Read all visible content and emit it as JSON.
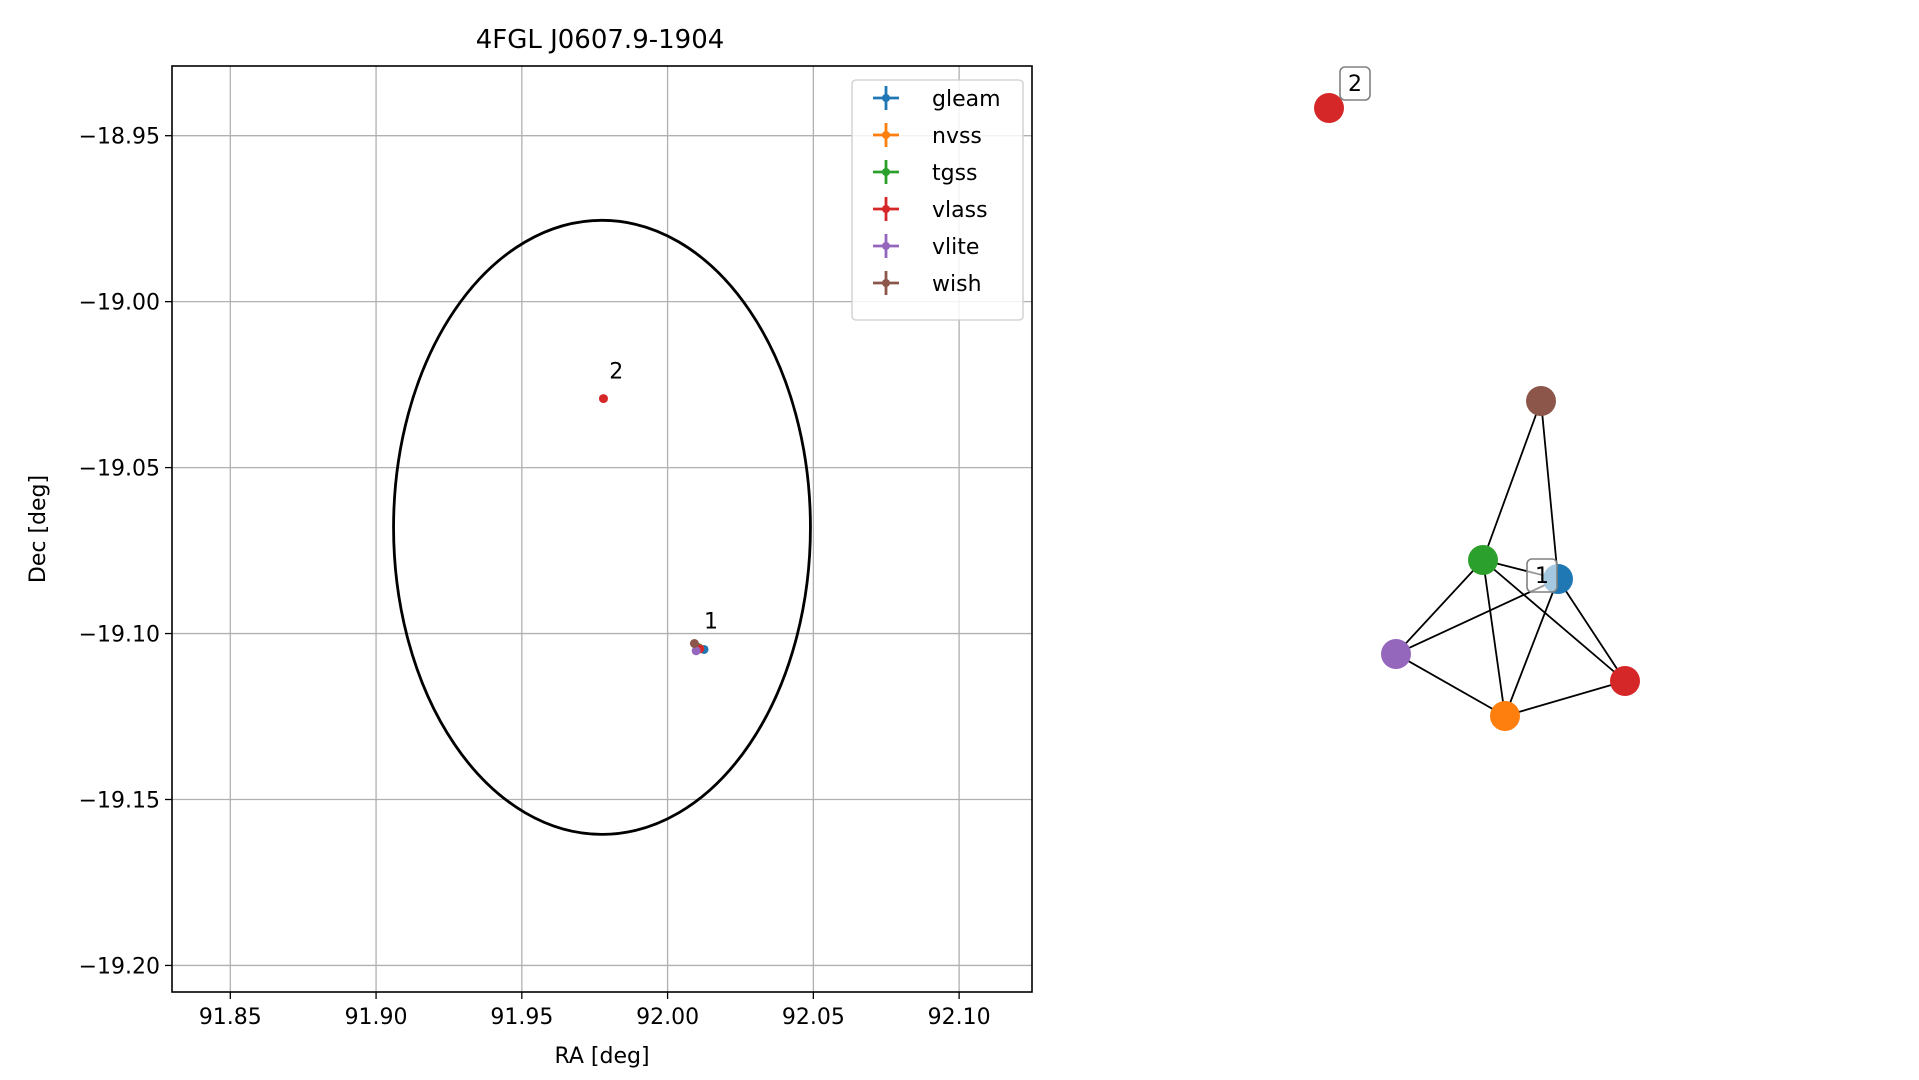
{
  "chart_data": [
    {
      "type": "scatter",
      "title": "4FGL J0607.9-1904",
      "xlabel": "RA [deg]",
      "ylabel": "Dec [deg]",
      "xlim": [
        91.83,
        92.125
      ],
      "ylim": [
        -19.208,
        -18.929
      ],
      "xticks": [
        {
          "value": 91.85,
          "label": "91.85"
        },
        {
          "value": 91.9,
          "label": "91.90"
        },
        {
          "value": 91.95,
          "label": "91.95"
        },
        {
          "value": 92.0,
          "label": "92.00"
        },
        {
          "value": 92.05,
          "label": "92.05"
        },
        {
          "value": 92.1,
          "label": "92.10"
        }
      ],
      "yticks": [
        {
          "value": -18.95,
          "label": "−18.95"
        },
        {
          "value": -19.0,
          "label": "−19.00"
        },
        {
          "value": -19.05,
          "label": "−19.05"
        },
        {
          "value": -19.1,
          "label": "−19.10"
        },
        {
          "value": -19.15,
          "label": "−19.15"
        },
        {
          "value": -19.2,
          "label": "−19.20"
        }
      ],
      "grid": true,
      "legend_position": "top-right",
      "ellipse": {
        "center": [
          91.9775,
          -19.068
        ],
        "semi_axis_ra": 0.0715,
        "semi_axis_dec": 0.0925,
        "color": "#000000"
      },
      "series": [
        {
          "name": "gleam",
          "color": "#1f77b4",
          "points": [
            [
              92.0125,
              -19.1048
            ]
          ]
        },
        {
          "name": "nvss",
          "color": "#ff7f0e",
          "points": [
            [
              92.011,
              -19.1045
            ]
          ]
        },
        {
          "name": "tgss",
          "color": "#2ca02c",
          "points": [
            [
              92.0105,
              -19.1042
            ]
          ]
        },
        {
          "name": "vlass",
          "color": "#d62728",
          "points": [
            [
              92.011,
              -19.1046
            ],
            [
              91.978,
              -19.0292
            ]
          ]
        },
        {
          "name": "vlite",
          "color": "#9467bd",
          "points": [
            [
              92.0098,
              -19.1052
            ]
          ]
        },
        {
          "name": "wish",
          "color": "#8c564b",
          "points": [
            [
              92.0092,
              -19.103
            ]
          ]
        }
      ],
      "annotations": [
        {
          "text": "2",
          "x": 91.98,
          "y": -19.0232
        },
        {
          "text": "1",
          "x": 92.0125,
          "y": -19.0985
        }
      ]
    },
    {
      "type": "network",
      "nodes": [
        {
          "id": "wish",
          "color": "#8c564b"
        },
        {
          "id": "tgss",
          "color": "#2ca02c"
        },
        {
          "id": "gleam",
          "color": "#1f77b4"
        },
        {
          "id": "vlite",
          "color": "#9467bd"
        },
        {
          "id": "vlass",
          "color": "#d62728"
        },
        {
          "id": "nvss",
          "color": "#ff7f0e"
        },
        {
          "id": "vlass-2",
          "color": "#d62728"
        }
      ],
      "edges": [
        [
          "wish",
          "tgss"
        ],
        [
          "wish",
          "gleam"
        ],
        [
          "tgss",
          "gleam"
        ],
        [
          "tgss",
          "vlite"
        ],
        [
          "tgss",
          "nvss"
        ],
        [
          "tgss",
          "vlass"
        ],
        [
          "gleam",
          "vlite"
        ],
        [
          "gleam",
          "nvss"
        ],
        [
          "gleam",
          "vlass"
        ],
        [
          "vlite",
          "nvss"
        ],
        [
          "nvss",
          "vlass"
        ]
      ],
      "labels": [
        {
          "text": "1"
        },
        {
          "text": "2"
        }
      ]
    }
  ]
}
